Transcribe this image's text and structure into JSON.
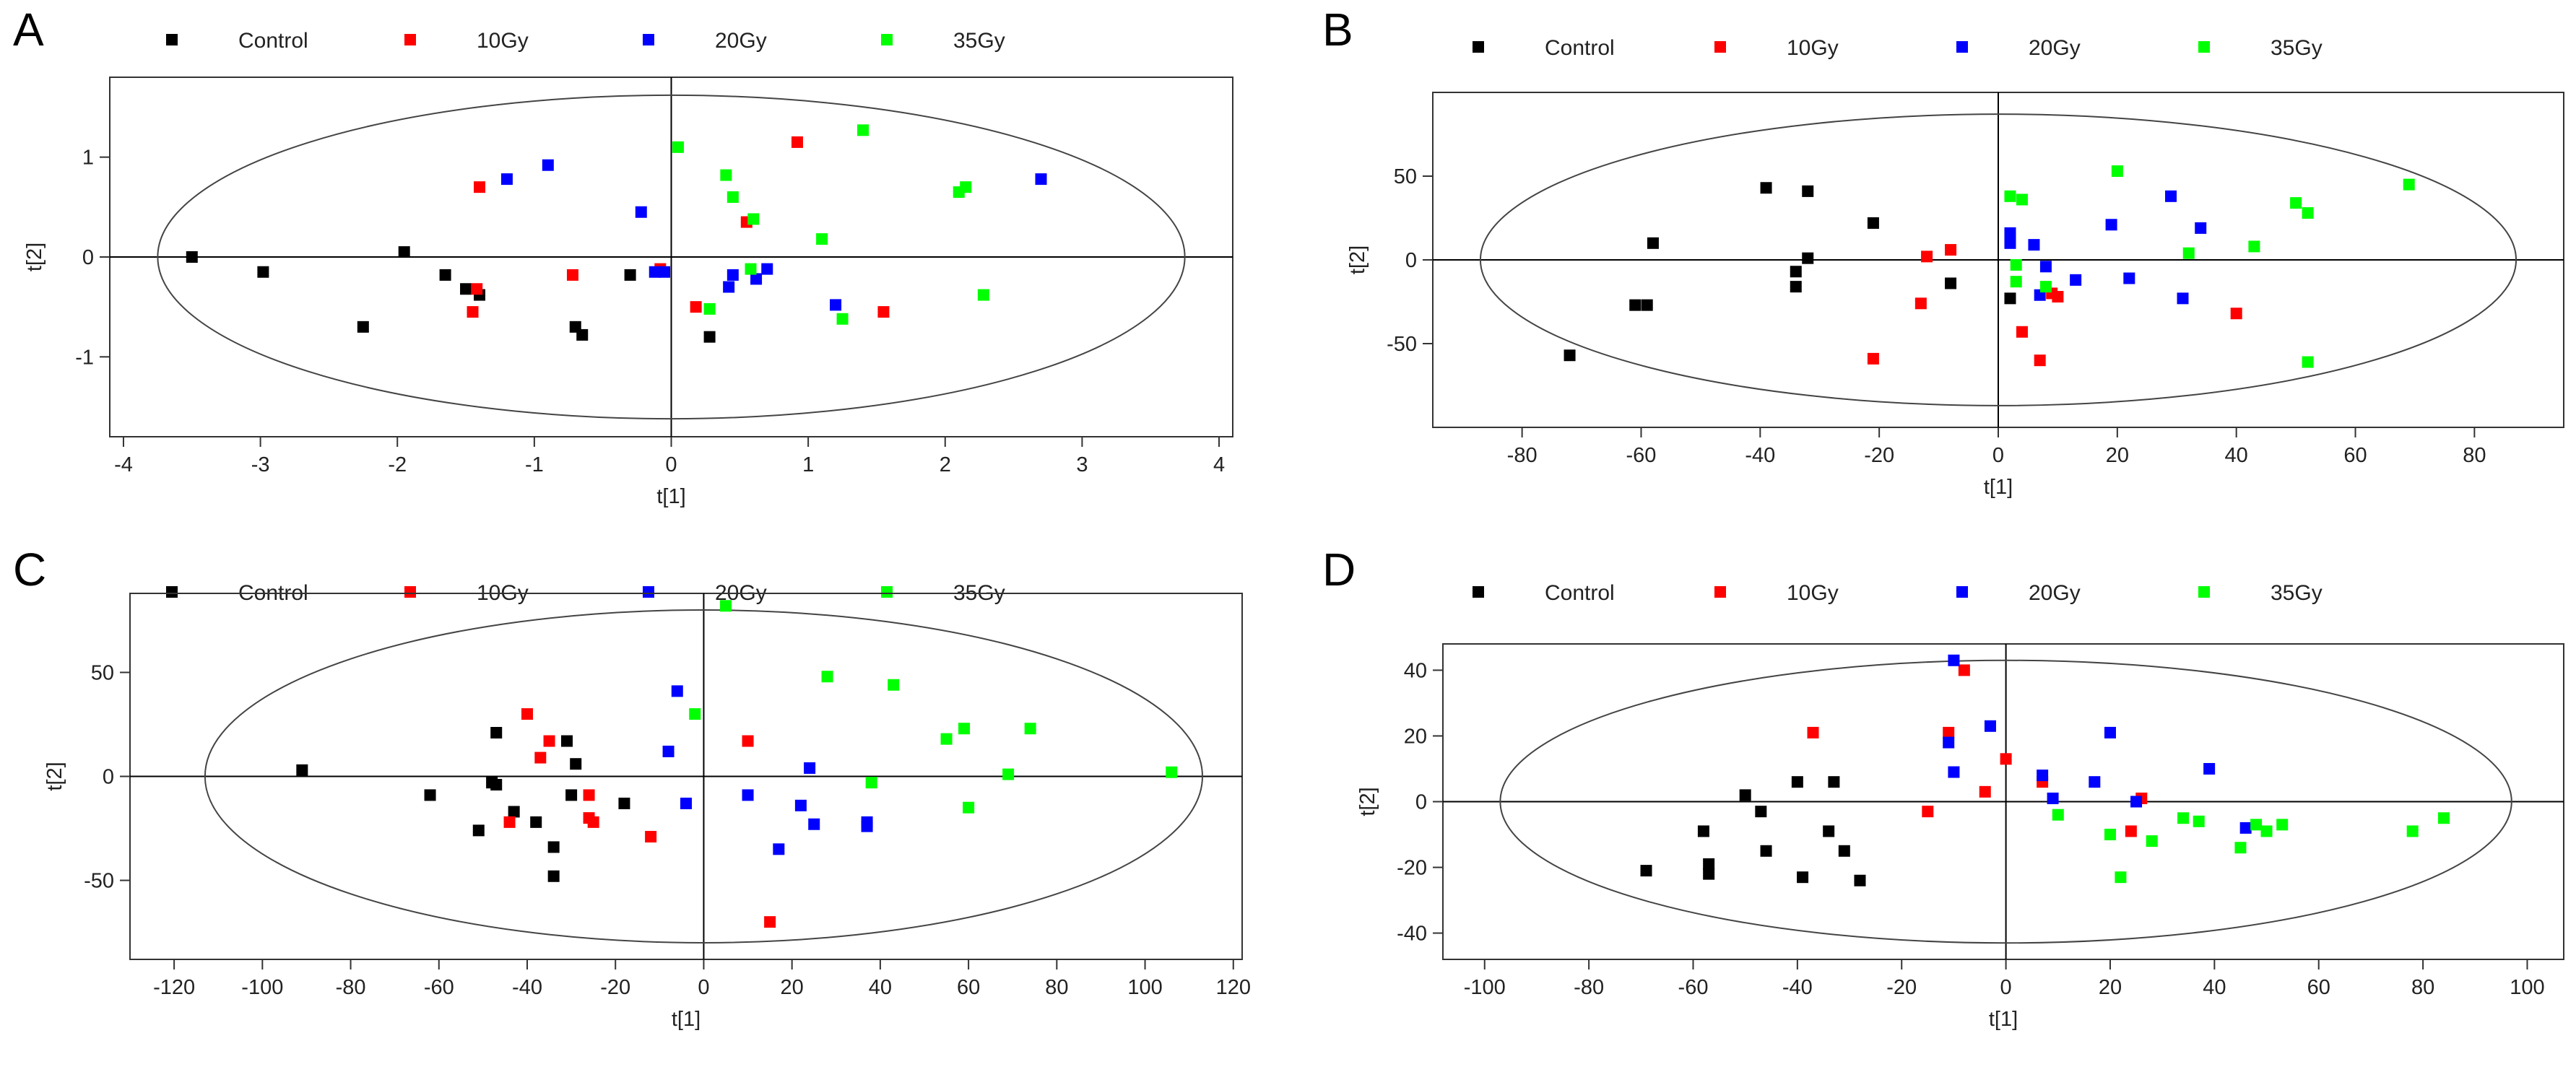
{
  "panels": [
    {
      "letter": "A",
      "chart_data": {
        "type": "scatter",
        "xlabel": "t[1]",
        "ylabel": "t[2]",
        "xlim": [
          -4.1,
          4.1
        ],
        "ylim": [
          -1.8,
          1.8
        ],
        "xticks": [
          -4,
          -3,
          -2,
          -1,
          0,
          1,
          2,
          3,
          4
        ],
        "yticks": [
          -1,
          0,
          1
        ],
        "ellipse": {
          "rx": 3.75,
          "ry": 1.62
        },
        "legend_position": "top",
        "series": [
          {
            "name": "Control",
            "color": "#000000",
            "points": [
              [
                -3.5,
                0.0
              ],
              [
                -2.98,
                -0.15
              ],
              [
                -2.25,
                -0.7
              ],
              [
                -1.95,
                0.05
              ],
              [
                -1.65,
                -0.18
              ],
              [
                -1.5,
                -0.32
              ],
              [
                -1.4,
                -0.38
              ],
              [
                -0.7,
                -0.7
              ],
              [
                -0.65,
                -0.78
              ],
              [
                -0.3,
                -0.18
              ],
              [
                0.28,
                -0.8
              ]
            ]
          },
          {
            "name": "10Gy",
            "color": "#ff0000",
            "points": [
              [
                -1.4,
                0.7
              ],
              [
                -1.42,
                -0.32
              ],
              [
                -1.45,
                -0.55
              ],
              [
                -0.72,
                -0.18
              ],
              [
                -0.08,
                -0.12
              ],
              [
                0.18,
                -0.5
              ],
              [
                0.55,
                0.35
              ],
              [
                0.92,
                1.15
              ],
              [
                1.55,
                -0.55
              ]
            ]
          },
          {
            "name": "20Gy",
            "color": "#0000ff",
            "points": [
              [
                -1.2,
                0.78
              ],
              [
                -0.9,
                0.92
              ],
              [
                -0.22,
                0.45
              ],
              [
                -0.12,
                -0.15
              ],
              [
                -0.05,
                -0.15
              ],
              [
                0.42,
                -0.3
              ],
              [
                0.45,
                -0.18
              ],
              [
                0.62,
                -0.22
              ],
              [
                0.7,
                -0.12
              ],
              [
                1.2,
                -0.48
              ],
              [
                2.7,
                0.78
              ]
            ]
          },
          {
            "name": "35Gy",
            "color": "#00ff00",
            "points": [
              [
                0.05,
                1.1
              ],
              [
                0.28,
                -0.52
              ],
              [
                0.4,
                0.82
              ],
              [
                0.45,
                0.6
              ],
              [
                0.58,
                -0.12
              ],
              [
                0.6,
                0.38
              ],
              [
                1.1,
                0.18
              ],
              [
                1.25,
                -0.62
              ],
              [
                1.4,
                1.27
              ],
              [
                2.1,
                0.65
              ],
              [
                2.15,
                0.7
              ],
              [
                2.28,
                -0.38
              ]
            ]
          }
        ]
      }
    },
    {
      "letter": "B",
      "chart_data": {
        "type": "scatter",
        "xlabel": "t[1]",
        "ylabel": "t[2]",
        "xlim": [
          -95,
          95
        ],
        "ylim": [
          -100,
          100
        ],
        "xticks": [
          -80,
          -60,
          -40,
          -20,
          0,
          20,
          40,
          60,
          80
        ],
        "yticks": [
          -50,
          0,
          50
        ],
        "ellipse": {
          "rx": 87,
          "ry": 87
        },
        "legend_position": "top",
        "series": [
          {
            "name": "Control",
            "color": "#000000",
            "points": [
              [
                -72,
                -57
              ],
              [
                -61,
                -27
              ],
              [
                -59,
                -27
              ],
              [
                -58,
                10
              ],
              [
                -39,
                43
              ],
              [
                -34,
                -16
              ],
              [
                -34,
                -7
              ],
              [
                -32,
                41
              ],
              [
                -32,
                1
              ],
              [
                -21,
                22
              ],
              [
                -8,
                -14
              ],
              [
                2,
                -23
              ]
            ]
          },
          {
            "name": "10Gy",
            "color": "#ff0000",
            "points": [
              [
                -21,
                -59
              ],
              [
                -13,
                -26
              ],
              [
                -12,
                2
              ],
              [
                -8,
                6
              ],
              [
                4,
                -43
              ],
              [
                7,
                -60
              ],
              [
                9,
                -20
              ],
              [
                10,
                -22
              ],
              [
                40,
                -32
              ]
            ]
          },
          {
            "name": "20Gy",
            "color": "#0000ff",
            "points": [
              [
                2,
                16
              ],
              [
                2,
                10
              ],
              [
                6,
                9
              ],
              [
                7,
                -21
              ],
              [
                8,
                -4
              ],
              [
                13,
                -12
              ],
              [
                19,
                21
              ],
              [
                22,
                -11
              ],
              [
                29,
                38
              ],
              [
                31,
                -23
              ],
              [
                34,
                19
              ]
            ]
          },
          {
            "name": "35Gy",
            "color": "#00ff00",
            "points": [
              [
                2,
                38
              ],
              [
                3,
                -3
              ],
              [
                3,
                -13
              ],
              [
                4,
                36
              ],
              [
                8,
                -16
              ],
              [
                20,
                53
              ],
              [
                32,
                4
              ],
              [
                43,
                8
              ],
              [
                50,
                34
              ],
              [
                52,
                28
              ],
              [
                52,
                -61
              ],
              [
                69,
                45
              ]
            ]
          }
        ]
      }
    },
    {
      "letter": "C",
      "chart_data": {
        "type": "scatter",
        "xlabel": "t[1]",
        "ylabel": "t[2]",
        "xlim": [
          -130,
          122
        ],
        "ylim": [
          -88,
          88
        ],
        "xticks": [
          -120,
          -100,
          -80,
          -60,
          -40,
          -20,
          0,
          20,
          40,
          60,
          80,
          100,
          120
        ],
        "yticks": [
          -50,
          0,
          50
        ],
        "ellipse": {
          "rx": 113,
          "ry": 80
        },
        "legend_position": "top",
        "series": [
          {
            "name": "Control",
            "color": "#000000",
            "points": [
              [
                -91,
                3
              ],
              [
                -62,
                -9
              ],
              [
                -51,
                -26
              ],
              [
                -48,
                -3
              ],
              [
                -47,
                -4
              ],
              [
                -47,
                21
              ],
              [
                -43,
                -17
              ],
              [
                -38,
                -22
              ],
              [
                -34,
                -34
              ],
              [
                -34,
                -48
              ],
              [
                -31,
                17
              ],
              [
                -30,
                -9
              ],
              [
                -29,
                6
              ],
              [
                -18,
                -13
              ]
            ]
          },
          {
            "name": "10Gy",
            "color": "#ff0000",
            "points": [
              [
                -44,
                -22
              ],
              [
                -40,
                30
              ],
              [
                -37,
                9
              ],
              [
                -35,
                17
              ],
              [
                -26,
                -9
              ],
              [
                -26,
                -20
              ],
              [
                -25,
                -22
              ],
              [
                -12,
                -29
              ],
              [
                10,
                17
              ],
              [
                15,
                -70
              ]
            ]
          },
          {
            "name": "20Gy",
            "color": "#0000ff",
            "points": [
              [
                -8,
                12
              ],
              [
                -6,
                41
              ],
              [
                -4,
                -13
              ],
              [
                10,
                -9
              ],
              [
                17,
                -35
              ],
              [
                22,
                -14
              ],
              [
                24,
                4
              ],
              [
                25,
                -23
              ],
              [
                37,
                -22
              ],
              [
                37,
                -24
              ]
            ]
          },
          {
            "name": "35Gy",
            "color": "#00ff00",
            "points": [
              [
                -2,
                30
              ],
              [
                5,
                82
              ],
              [
                28,
                48
              ],
              [
                38,
                -3
              ],
              [
                43,
                44
              ],
              [
                55,
                18
              ],
              [
                59,
                23
              ],
              [
                60,
                -15
              ],
              [
                69,
                1
              ],
              [
                74,
                23
              ],
              [
                106,
                2
              ]
            ]
          }
        ]
      }
    },
    {
      "letter": "D",
      "chart_data": {
        "type": "scatter",
        "xlabel": "t[1]",
        "ylabel": "t[2]",
        "xlim": [
          -108,
          107
        ],
        "ylim": [
          -48,
          48
        ],
        "xticks": [
          -100,
          -80,
          -60,
          -40,
          -20,
          0,
          20,
          40,
          60,
          80,
          100
        ],
        "yticks": [
          -40,
          -20,
          0,
          20,
          40
        ],
        "ellipse": {
          "rx": 97,
          "ry": 43
        },
        "legend_position": "top",
        "series": [
          {
            "name": "Control",
            "color": "#000000",
            "points": [
              [
                -69,
                -21
              ],
              [
                -58,
                -9
              ],
              [
                -57,
                -19
              ],
              [
                -57,
                -22
              ],
              [
                -50,
                2
              ],
              [
                -47,
                -3
              ],
              [
                -46,
                -15
              ],
              [
                -40,
                6
              ],
              [
                -39,
                -23
              ],
              [
                -34,
                -9
              ],
              [
                -33,
                6
              ],
              [
                -31,
                -15
              ],
              [
                -28,
                -24
              ]
            ]
          },
          {
            "name": "10Gy",
            "color": "#ff0000",
            "points": [
              [
                -37,
                21
              ],
              [
                -15,
                -3
              ],
              [
                -11,
                21
              ],
              [
                -8,
                40
              ],
              [
                -4,
                3
              ],
              [
                0,
                13
              ],
              [
                7,
                6
              ],
              [
                24,
                -9
              ],
              [
                26,
                1
              ]
            ]
          },
          {
            "name": "20Gy",
            "color": "#0000ff",
            "points": [
              [
                -11,
                18
              ],
              [
                -10,
                9
              ],
              [
                -10,
                43
              ],
              [
                -3,
                23
              ],
              [
                7,
                8
              ],
              [
                9,
                1
              ],
              [
                17,
                6
              ],
              [
                20,
                21
              ],
              [
                25,
                0
              ],
              [
                39,
                10
              ],
              [
                46,
                -8
              ]
            ]
          },
          {
            "name": "35Gy",
            "color": "#00ff00",
            "points": [
              [
                10,
                -4
              ],
              [
                20,
                -10
              ],
              [
                22,
                -23
              ],
              [
                28,
                -12
              ],
              [
                34,
                -5
              ],
              [
                37,
                -6
              ],
              [
                45,
                -14
              ],
              [
                48,
                -7
              ],
              [
                50,
                -9
              ],
              [
                53,
                -7
              ],
              [
                78,
                -9
              ],
              [
                84,
                -5
              ]
            ]
          }
        ]
      }
    }
  ]
}
